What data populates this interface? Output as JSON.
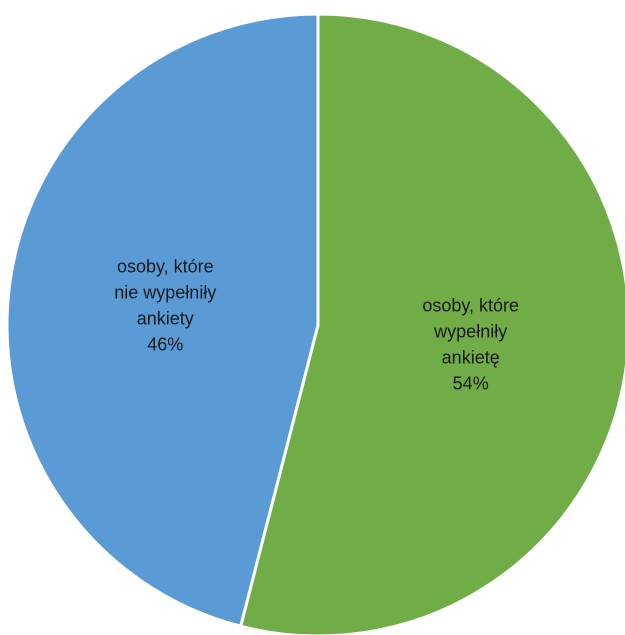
{
  "chart_data": {
    "type": "pie",
    "title": "",
    "slices": [
      {
        "label_lines": [
          "osoby, które",
          "wypełniły",
          "ankietę"
        ],
        "value": 54,
        "value_label": "54%",
        "color": "#70AD47"
      },
      {
        "label_lines": [
          "osoby, które",
          "nie wypełniły",
          "ankiety"
        ],
        "value": 46,
        "value_label": "46%",
        "color": "#5B9BD5"
      }
    ],
    "start_angle_deg": 0,
    "direction": "clockwise",
    "legend": "none",
    "data_labels": "inside"
  }
}
